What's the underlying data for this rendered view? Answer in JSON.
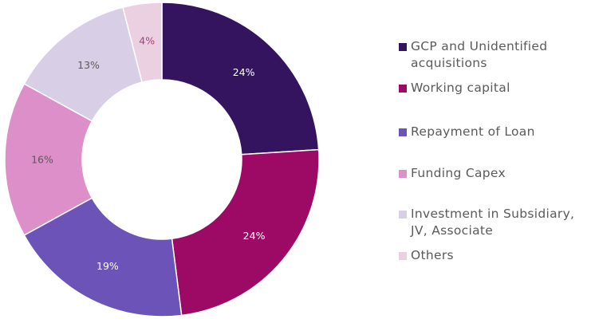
{
  "chart_data": {
    "type": "pie",
    "style": "donut",
    "title": "",
    "categories": [
      "GCP and Unidentified acquisitions",
      "Working capital",
      "Repayment of Loan",
      "Funding Capex",
      "Investment in Subsidiary, JV, Associate",
      "Others"
    ],
    "values": [
      24,
      24,
      19,
      16,
      13,
      4
    ],
    "data_labels": [
      "24%",
      "24%",
      "19%",
      "16%",
      "13%",
      "4%"
    ],
    "colors": [
      "#35145f",
      "#9c0a66",
      "#6b53b7",
      "#dc8fc8",
      "#d8cfe6",
      "#ead0e1"
    ],
    "label_colors": [
      "#ffffff",
      "#ffffff",
      "#ffffff",
      "#5a5a5a",
      "#5a5a5a",
      "#a0427c"
    ],
    "legend_position": "right"
  }
}
